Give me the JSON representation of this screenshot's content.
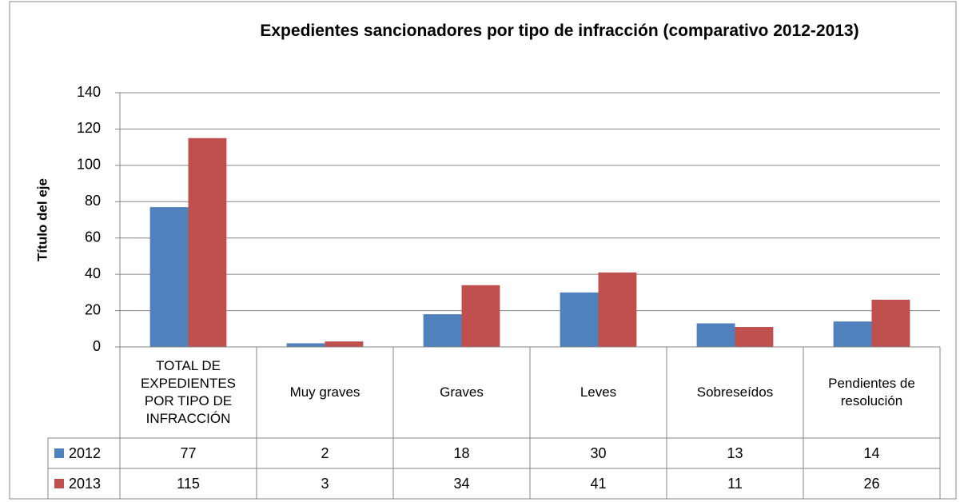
{
  "chart_data": {
    "type": "bar",
    "title": "Expedientes sancionadores por tipo de infracción (comparativo 2012-2013)",
    "y_label": "Título del eje",
    "categories": [
      "TOTAL DE EXPEDIENTES POR TIPO DE INFRACCIÓN",
      "Muy graves",
      "Graves",
      "Leves",
      "Sobreseídos",
      "Pendientes de resolución"
    ],
    "series": [
      {
        "name": "2012",
        "color": "#4f81bd",
        "values": [
          77,
          2,
          18,
          30,
          13,
          14
        ]
      },
      {
        "name": "2013",
        "color": "#c0504d",
        "values": [
          115,
          3,
          34,
          41,
          11,
          26
        ]
      }
    ],
    "ylim": [
      0,
      140
    ],
    "yticks": [
      0,
      20,
      40,
      60,
      80,
      100,
      120,
      140
    ],
    "grid": true,
    "data_table": true
  }
}
